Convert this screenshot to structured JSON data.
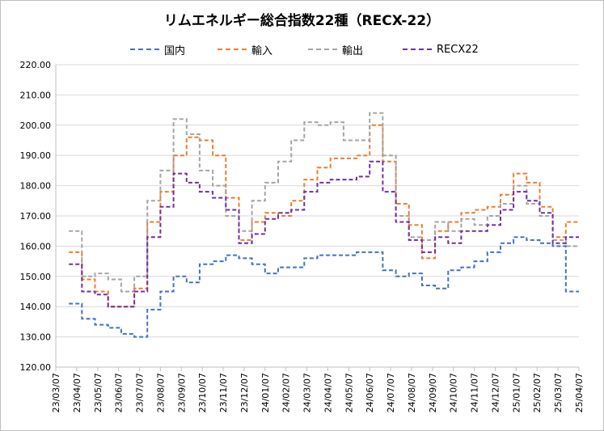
{
  "chart_data": {
    "type": "line",
    "title": "リムエネルギー総合指数22種（RECX-22）",
    "xlabel": "",
    "ylabel": "",
    "ylim": [
      120,
      220
    ],
    "y_ticks": [
      "120.00",
      "130.00",
      "140.00",
      "150.00",
      "160.00",
      "170.00",
      "180.00",
      "190.00",
      "200.00",
      "210.00",
      "220.00"
    ],
    "x_ticks": [
      "23/03/07",
      "23/04/07",
      "23/05/07",
      "23/06/07",
      "23/07/07",
      "23/08/07",
      "23/09/07",
      "23/10/07",
      "23/11/07",
      "23/12/07",
      "24/01/07",
      "24/02/07",
      "24/03/07",
      "24/04/07",
      "24/05/07",
      "24/06/07",
      "24/07/07",
      "24/08/07",
      "24/09/07",
      "24/10/07",
      "24/11/07",
      "24/12/07",
      "25/01/07",
      "25/02/07",
      "25/03/07",
      "25/04/07"
    ],
    "grid": true,
    "legend_position": "top",
    "series": [
      {
        "name": "国内",
        "color": "#4472c4",
        "values": [
          null,
          141,
          136,
          134,
          133,
          131,
          130,
          139,
          145,
          150,
          148,
          154,
          155,
          157,
          156,
          154,
          151,
          153,
          153,
          156,
          157,
          157,
          157,
          158,
          158,
          152,
          150,
          151,
          147,
          146,
          152,
          153,
          155,
          158,
          161,
          163,
          162,
          161,
          160,
          145
        ]
      },
      {
        "name": "輸入",
        "color": "#ed7d31",
        "values": [
          null,
          158,
          149,
          145,
          140,
          140,
          146,
          168,
          178,
          190,
          196,
          195,
          190,
          176,
          162,
          168,
          171,
          170,
          175,
          182,
          186,
          189,
          189,
          190,
          200,
          188,
          174,
          167,
          156,
          165,
          168,
          171,
          172,
          173,
          177,
          184,
          181,
          173,
          163,
          168
        ]
      },
      {
        "name": "輸出",
        "color": "#a5a5a5",
        "values": [
          null,
          165,
          150,
          151,
          149,
          145,
          150,
          175,
          185,
          202,
          197,
          185,
          180,
          170,
          165,
          175,
          181,
          188,
          195,
          201,
          200,
          201,
          195,
          195,
          204,
          190,
          170,
          163,
          162,
          168,
          165,
          169,
          167,
          170,
          174,
          180,
          174,
          170,
          162,
          160
        ]
      },
      {
        "name": "RECX22",
        "color": "#7030a0",
        "values": [
          null,
          154,
          145,
          144,
          140,
          140,
          145,
          163,
          173,
          184,
          181,
          178,
          176,
          172,
          161,
          164,
          169,
          171,
          172,
          178,
          181,
          182,
          182,
          183,
          188,
          178,
          168,
          162,
          158,
          163,
          161,
          165,
          165,
          167,
          172,
          178,
          175,
          171,
          161,
          163
        ]
      }
    ]
  }
}
